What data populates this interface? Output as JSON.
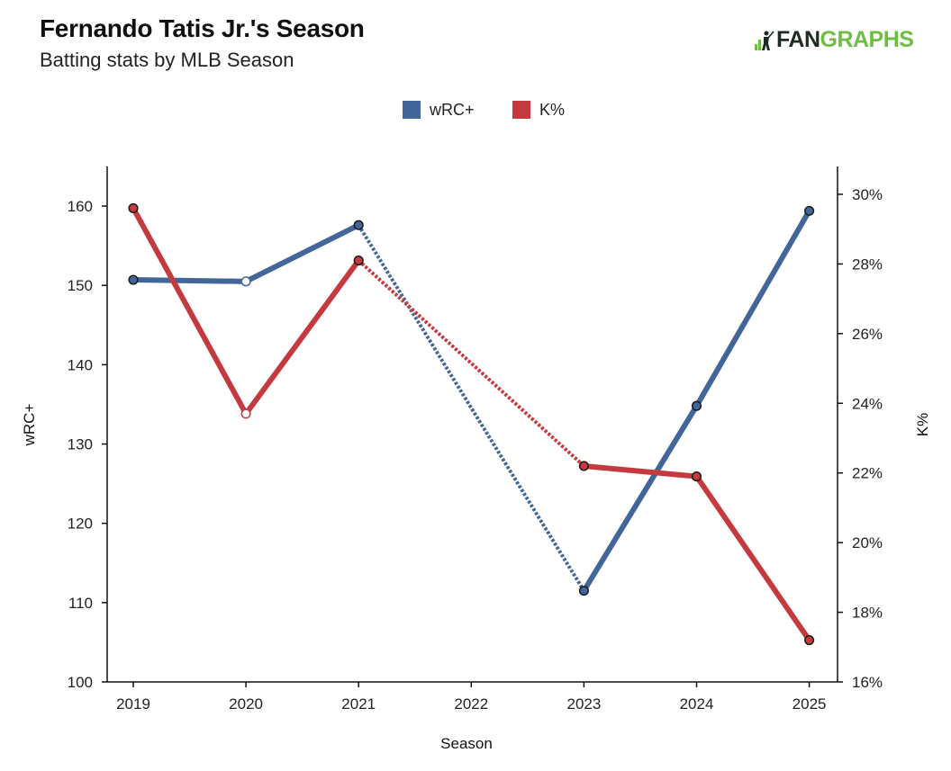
{
  "header": {
    "title": "Fernando Tatis Jr.'s Season",
    "subtitle": "Batting stats by MLB Season",
    "logo_fan": "FAN",
    "logo_graphs": "GRAPHS"
  },
  "chart_data": {
    "type": "line",
    "title": "Fernando Tatis Jr.'s Season",
    "subtitle": "Batting stats by MLB Season",
    "xlabel": "Season",
    "ylabel": "wRC+",
    "y2label": "K%",
    "x": [
      "2019",
      "2020",
      "2021",
      "2022",
      "2023",
      "2024",
      "2025"
    ],
    "ylim": [
      100,
      165
    ],
    "y2lim": [
      16,
      30.8
    ],
    "y_ticks": [
      100,
      110,
      120,
      130,
      140,
      150,
      160
    ],
    "y2_ticks": [
      16,
      18,
      20,
      22,
      24,
      26,
      28,
      30
    ],
    "y2_tick_labels": [
      "16%",
      "18%",
      "20%",
      "22%",
      "24%",
      "26%",
      "28%",
      "30%"
    ],
    "legend_position": "top-center",
    "grid": false,
    "missing_seasons": [
      "2022"
    ],
    "series": [
      {
        "name": "wRC+",
        "axis": "left",
        "color": "#43669a",
        "values": [
          150.7,
          150.5,
          157.6,
          null,
          111.5,
          134.8,
          159.4
        ],
        "open_markers": [
          "2020"
        ]
      },
      {
        "name": "K%",
        "axis": "right",
        "color": "#c53a3f",
        "values": [
          29.6,
          23.7,
          28.1,
          null,
          22.2,
          21.9,
          17.2
        ],
        "open_markers": [
          "2020"
        ]
      }
    ]
  }
}
